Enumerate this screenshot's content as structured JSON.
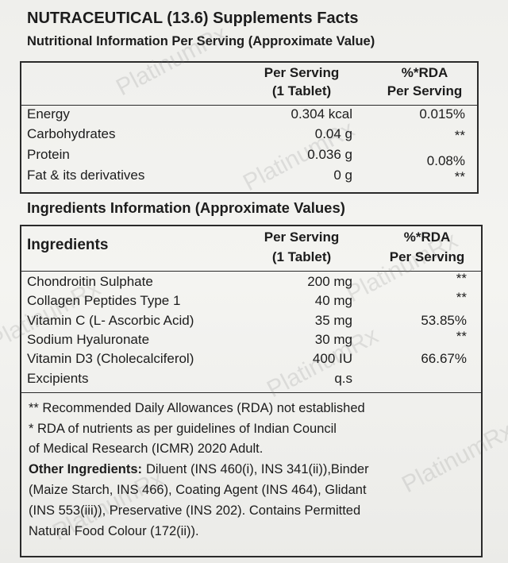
{
  "header": {
    "title": "NUTRACEUTICAL (13.6) Supplements Facts",
    "subtitle": "Nutritional Information Per Serving (Approximate Value)"
  },
  "nutrition_table": {
    "columns": [
      [
        "Per Serving",
        "(1 Tablet)"
      ],
      [
        "%*RDA",
        "Per Serving"
      ]
    ],
    "rows": [
      [
        "Energy",
        "0.304 kcal",
        "0.015%"
      ],
      [
        "Carbohydrates",
        "0.04 g",
        "**"
      ],
      [
        "Protein",
        "0.036 g",
        "0.08%"
      ],
      [
        "Fat & its derivatives",
        "0 g",
        "**"
      ]
    ]
  },
  "ingredients_heading": "Ingredients Information (Approximate Values)",
  "ingredients_table": {
    "columns": [
      [
        "Ingredients"
      ],
      [
        "Per Serving",
        "(1 Tablet)"
      ],
      [
        "%*RDA",
        "Per Serving"
      ]
    ],
    "rows": [
      [
        "Chondroitin Sulphate",
        "200 mg",
        "**"
      ],
      [
        "Collagen Peptides Type 1",
        "40 mg",
        "**"
      ],
      [
        "Vitamin C (L- Ascorbic Acid)",
        "35 mg",
        "53.85%"
      ],
      [
        "Sodium Hyaluronate",
        "30 mg",
        "**"
      ],
      [
        "Vitamin D3 (Cholecalciferol)",
        "400 IU",
        "66.67%"
      ],
      [
        "Excipients",
        "q.s"
      ]
    ]
  },
  "notes": [
    [
      "** Recommended Daily Allowances (RDA) not established"
    ],
    [
      "* RDA of nutrients as per guidelines of Indian Council",
      "of Medical Research (ICMR) 2020 Adult."
    ]
  ],
  "other_ingredients": {
    "label": "Other Ingredients:",
    "lines": [
      "Diluent (INS 460(i), INS 341(ii)),Binder",
      "(Maize Starch, INS 466), Coating Agent (INS 464), Glidant",
      "(INS 553(iii)), Preservative (INS 202). Contains Permitted",
      "Natural Food Colour (172(ii))."
    ]
  },
  "watermark": "PlatinumRx"
}
